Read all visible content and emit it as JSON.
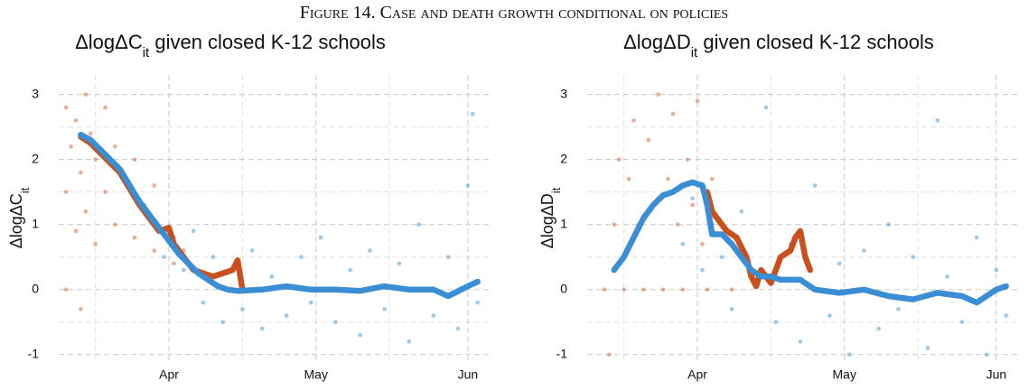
{
  "figure_caption": "Figure 14. Case and death growth conditional on policies",
  "chart_data": [
    {
      "type": "scatter",
      "title": {
        "main": "ΔlogΔC",
        "sub": "it",
        "rest": " given closed K-12 schools"
      },
      "y_label": {
        "main": "ΔlogΔC",
        "sub": "it"
      },
      "xlim": [
        8.5,
        97
      ],
      "ylim": [
        -1.1,
        3.3
      ],
      "xticks": [
        {
          "value": 31,
          "label": "Apr"
        },
        {
          "value": 61,
          "label": "May"
        },
        {
          "value": 92,
          "label": "Jun"
        }
      ],
      "yticks": [
        -1,
        0,
        1,
        2,
        3
      ],
      "minor_xticks": [
        16,
        46,
        76
      ],
      "minor_yticks": [
        -0.5,
        0.5,
        1.5,
        2.5
      ],
      "grid": true,
      "series": [
        {
          "style": "markers",
          "color": "#d9774f",
          "x": [
            10,
            10,
            11,
            12,
            12,
            13,
            14,
            14,
            15,
            16,
            16,
            18,
            18,
            20,
            20,
            22,
            24,
            24,
            26,
            28,
            28,
            30,
            32,
            34,
            10,
            13
          ],
          "values": [
            2.8,
            1.5,
            2.2,
            0.9,
            2.6,
            1.8,
            3.0,
            1.2,
            2.4,
            0.7,
            2.0,
            1.5,
            2.8,
            1.0,
            2.2,
            1.7,
            0.8,
            2.0,
            1.3,
            0.6,
            1.6,
            0.9,
            0.4,
            0.6,
            0.0,
            -0.3
          ]
        },
        {
          "style": "markers",
          "color": "#5aa3dc",
          "x": [
            28,
            30,
            32,
            34,
            36,
            38,
            40,
            42,
            44,
            46,
            48,
            50,
            52,
            55,
            58,
            60,
            62,
            65,
            68,
            70,
            72,
            75,
            78,
            80,
            82,
            85,
            88,
            90,
            92,
            93,
            94
          ],
          "values": [
            1.0,
            0.5,
            0.8,
            0.3,
            0.9,
            -0.2,
            0.5,
            -0.5,
            0.3,
            -0.3,
            0.6,
            -0.6,
            0.2,
            -0.4,
            0.5,
            -0.2,
            0.8,
            -0.5,
            0.3,
            -0.7,
            0.6,
            -0.3,
            0.4,
            -0.8,
            1.0,
            -0.4,
            0.5,
            -0.6,
            1.6,
            2.7,
            -0.2
          ]
        },
        {
          "style": "line",
          "color": "#c94f1d",
          "x": [
            13,
            15,
            17,
            19,
            21,
            23,
            25,
            27,
            29,
            31,
            32,
            34,
            36,
            38,
            40,
            42,
            44,
            45,
            46
          ],
          "values": [
            2.35,
            2.25,
            2.1,
            1.95,
            1.8,
            1.55,
            1.3,
            1.1,
            0.9,
            0.95,
            0.7,
            0.5,
            0.3,
            0.25,
            0.2,
            0.25,
            0.3,
            0.45,
            0.0
          ]
        },
        {
          "style": "line",
          "color": "#3a8fd4",
          "x": [
            13,
            15,
            17,
            19,
            21,
            23,
            25,
            27,
            29,
            31,
            33,
            35,
            37,
            39,
            41,
            43,
            45,
            50,
            55,
            60,
            65,
            70,
            75,
            80,
            85,
            88,
            92,
            94
          ],
          "values": [
            2.38,
            2.3,
            2.15,
            2.0,
            1.85,
            1.6,
            1.35,
            1.15,
            0.95,
            0.75,
            0.55,
            0.4,
            0.25,
            0.15,
            0.05,
            0.0,
            -0.02,
            0.0,
            0.05,
            0.0,
            0.0,
            -0.02,
            0.05,
            0.0,
            0.0,
            -0.1,
            0.05,
            0.12
          ]
        }
      ]
    },
    {
      "type": "scatter",
      "title": {
        "main": "ΔlogΔD",
        "sub": "it",
        "rest": " given closed K-12 schools"
      },
      "y_label": {
        "main": "ΔlogΔD",
        "sub": "it"
      },
      "xlim": [
        8.5,
        97
      ],
      "ylim": [
        -1.1,
        3.3
      ],
      "xticks": [
        {
          "value": 31,
          "label": "Apr"
        },
        {
          "value": 61,
          "label": "May"
        },
        {
          "value": 92,
          "label": "Jun"
        }
      ],
      "yticks": [
        -1,
        0,
        1,
        2,
        3
      ],
      "minor_xticks": [
        16,
        46,
        76
      ],
      "minor_yticks": [
        -0.5,
        0.5,
        1.5,
        2.5
      ],
      "grid": true,
      "series": [
        {
          "style": "markers",
          "color": "#d9774f",
          "x": [
            12,
            14,
            15,
            16,
            17,
            18,
            19,
            20,
            21,
            22,
            23,
            24,
            25,
            26,
            27,
            28,
            29,
            30,
            31,
            32,
            33,
            34,
            36,
            38,
            40,
            13
          ],
          "values": [
            0,
            1.0,
            2.0,
            0,
            1.7,
            2.6,
            1.0,
            0,
            2.3,
            1.3,
            3.0,
            0,
            1.7,
            2.7,
            1.0,
            0,
            2.0,
            1.3,
            2.9,
            0.7,
            0,
            1.7,
            1.0,
            0,
            0.5,
            -1.0
          ]
        },
        {
          "style": "markers",
          "color": "#5aa3dc",
          "x": [
            28,
            30,
            32,
            34,
            36,
            38,
            40,
            42,
            45,
            47,
            50,
            52,
            55,
            58,
            60,
            62,
            65,
            68,
            70,
            72,
            75,
            78,
            80,
            82,
            85,
            88,
            90,
            92,
            94
          ],
          "values": [
            0.7,
            1.4,
            0.3,
            1.0,
            0.5,
            -0.3,
            1.2,
            0.2,
            2.8,
            -0.5,
            0.7,
            -0.8,
            1.6,
            -0.4,
            0.4,
            -1.0,
            0.6,
            -0.6,
            1.0,
            -0.3,
            0.5,
            -0.9,
            2.6,
            0.2,
            -0.5,
            0.8,
            -1.0,
            0.3,
            -0.4
          ]
        },
        {
          "style": "line",
          "color": "#c94f1d",
          "x": [
            33,
            34,
            35,
            37,
            39,
            41,
            42,
            43,
            44,
            45,
            46,
            48,
            50,
            51,
            52,
            53,
            54
          ],
          "values": [
            1.5,
            1.2,
            1.1,
            0.9,
            0.8,
            0.5,
            0.2,
            0.05,
            0.3,
            0.2,
            0.1,
            0.5,
            0.6,
            0.8,
            0.9,
            0.5,
            0.3
          ]
        },
        {
          "style": "line",
          "color": "#3a8fd4",
          "x": [
            14,
            16,
            18,
            20,
            22,
            24,
            26,
            28,
            30,
            32,
            33,
            34,
            36,
            38,
            40,
            42,
            44,
            46,
            48,
            52,
            55,
            60,
            65,
            70,
            75,
            80,
            85,
            88,
            92,
            94
          ],
          "values": [
            0.3,
            0.5,
            0.8,
            1.1,
            1.3,
            1.45,
            1.5,
            1.6,
            1.65,
            1.6,
            1.3,
            0.85,
            0.85,
            0.7,
            0.5,
            0.3,
            0.2,
            0.2,
            0.15,
            0.15,
            0.0,
            -0.05,
            0.0,
            -0.1,
            -0.15,
            -0.05,
            -0.1,
            -0.2,
            0.0,
            0.05
          ]
        }
      ]
    }
  ]
}
